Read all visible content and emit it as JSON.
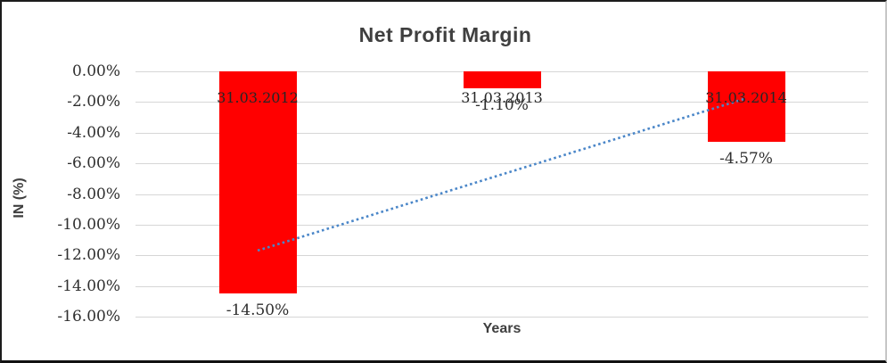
{
  "chart_data": {
    "type": "bar",
    "title": "Net Profit Margin",
    "xlabel": "Years",
    "ylabel": "IN (%)",
    "categories": [
      "31.03.2012",
      "31.03.2013",
      "31.03.2014"
    ],
    "values": [
      -14.5,
      -1.1,
      -4.57
    ],
    "value_labels": [
      "-14.50%",
      "-1.10%",
      "-4.57%"
    ],
    "ylim": [
      -16,
      0
    ],
    "ytick_labels": [
      "0.00%",
      "-2.00%",
      "-4.00%",
      "-6.00%",
      "-8.00%",
      "-10.00%",
      "-12.00%",
      "-14.00%",
      "-16.00%"
    ],
    "grid": true,
    "legend_position": "none",
    "bar_color": "#FF0000",
    "gridline_color": "#D6D6D6",
    "title_color": "#3F3F3F",
    "trendline": {
      "type": "linear",
      "style": "dotted",
      "color": "#4A86C8",
      "start_value": -11.69,
      "end_value": -1.76
    }
  }
}
